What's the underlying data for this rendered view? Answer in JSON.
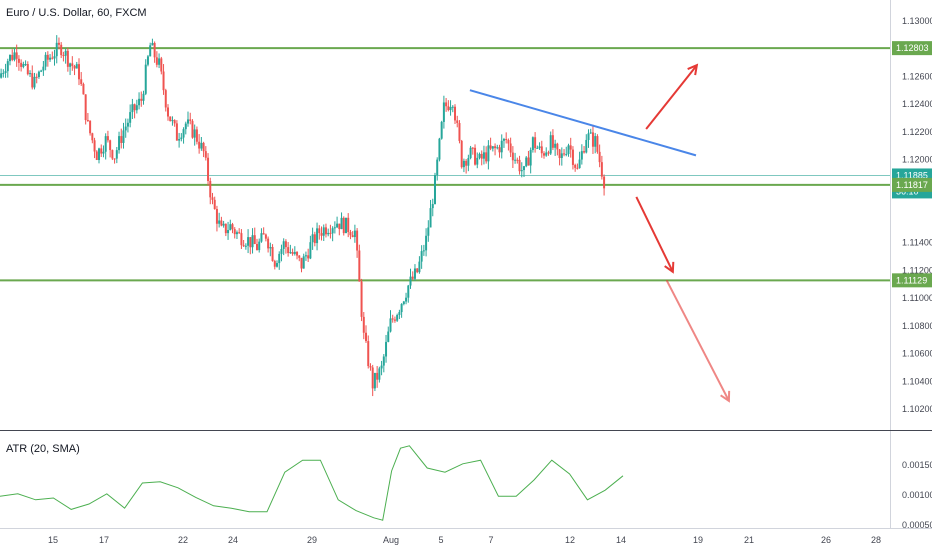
{
  "chart_data": [
    {
      "type": "candlestick",
      "title": "Euro / U.S. Dollar, 60, FXCM",
      "price_axis": {
        "ticks": [
          1.13,
          1.128,
          1.126,
          1.124,
          1.122,
          1.12,
          1.118,
          1.116,
          1.114,
          1.112,
          1.11,
          1.108,
          1.106,
          1.104,
          1.102
        ],
        "labels": [
          "1.13000",
          "1.12803",
          "1.12600",
          "1.12400",
          "1.12200",
          "1.12000",
          "1.11885",
          "36:10",
          "1.11817",
          "1.11400",
          "1.11200",
          "1.11129",
          "1.11000",
          "1.10800",
          "1.10600",
          "1.10400",
          "1.10200"
        ],
        "ylim": [
          1.1005,
          1.1315
        ]
      },
      "x_axis": {
        "labels": [
          "15",
          "17",
          "22",
          "24",
          "29",
          "Aug",
          "5",
          "7",
          "12",
          "14",
          "19",
          "21",
          "26",
          "28"
        ],
        "xlim": [
          0,
          100
        ]
      },
      "colors": {
        "up": "#26a69a",
        "down": "#ef5350",
        "level": "#6aa84f",
        "trend": "#4a86e8",
        "arrow": "#e53935"
      },
      "price_path": [
        [
          0,
          1.1259
        ],
        [
          1,
          1.1272
        ],
        [
          2,
          1.1278
        ],
        [
          3,
          1.1263
        ],
        [
          4,
          1.1255
        ],
        [
          5,
          1.1268
        ],
        [
          6,
          1.1276
        ],
        [
          7,
          1.1281
        ],
        [
          8,
          1.127
        ],
        [
          9,
          1.1262
        ],
        [
          10,
          1.1224
        ],
        [
          11,
          1.1204
        ],
        [
          12,
          1.1214
        ],
        [
          13,
          1.1203
        ],
        [
          14,
          1.1221
        ],
        [
          15,
          1.1234
        ],
        [
          16,
          1.1243
        ],
        [
          17,
          1.1282
        ],
        [
          18,
          1.1268
        ],
        [
          19,
          1.1234
        ],
        [
          20,
          1.1217
        ],
        [
          21,
          1.1226
        ],
        [
          22,
          1.1219
        ],
        [
          23,
          1.1205
        ],
        [
          24,
          1.1168
        ],
        [
          25,
          1.1148
        ],
        [
          26,
          1.1152
        ],
        [
          27,
          1.1145
        ],
        [
          28,
          1.1142
        ],
        [
          29,
          1.1137
        ],
        [
          30,
          1.1146
        ],
        [
          31,
          1.1127
        ],
        [
          32,
          1.1139
        ],
        [
          33,
          1.1132
        ],
        [
          34,
          1.1124
        ],
        [
          35,
          1.1138
        ],
        [
          36,
          1.1148
        ],
        [
          37,
          1.1152
        ],
        [
          38,
          1.1155
        ],
        [
          39,
          1.1152
        ],
        [
          40,
          1.1148
        ],
        [
          41,
          1.1072
        ],
        [
          42,
          1.1038
        ],
        [
          43,
          1.1049
        ],
        [
          44,
          1.1082
        ],
        [
          45,
          1.1094
        ],
        [
          46,
          1.1109
        ],
        [
          47,
          1.1119
        ],
        [
          48,
          1.1142
        ],
        [
          49,
          1.1183
        ],
        [
          50,
          1.1237
        ],
        [
          51,
          1.1244
        ],
        [
          52,
          1.1199
        ],
        [
          53,
          1.1204
        ],
        [
          54,
          1.1199
        ],
        [
          55,
          1.1205
        ],
        [
          56,
          1.1208
        ],
        [
          57,
          1.1214
        ],
        [
          58,
          1.1201
        ],
        [
          59,
          1.119
        ],
        [
          60,
          1.1213
        ],
        [
          61,
          1.1204
        ],
        [
          62,
          1.1212
        ],
        [
          63,
          1.1199
        ],
        [
          64,
          1.1212
        ],
        [
          65,
          1.1192
        ],
        [
          66,
          1.1217
        ],
        [
          67,
          1.1213
        ],
        [
          68,
          1.1185
        ]
      ],
      "annotations": {
        "levels": [
          1.12803,
          1.11885,
          1.11817,
          1.11129
        ],
        "trendline": [
          [
            52.8,
            1.125
          ],
          [
            78.2,
            1.1203
          ]
        ],
        "arrows": [
          {
            "from": [
              72.6,
              1.1222
            ],
            "to": [
              78.3,
              1.1268
            ],
            "opacity": 1
          },
          {
            "from": [
              71.5,
              1.1173
            ],
            "to": [
              75.6,
              1.1119
            ],
            "opacity": 1
          },
          {
            "from": [
              74.9,
              1.1113
            ],
            "to": [
              81.9,
              1.1026
            ],
            "opacity": 0.6
          }
        ]
      }
    },
    {
      "type": "line",
      "title": "ATR (20, SMA)",
      "ticks": [
        0.0015,
        0.001,
        0.0005
      ],
      "labels": [
        "0.00150",
        "0.00100",
        "0.00050"
      ],
      "ylim": [
        0.00045,
        0.00205
      ],
      "x": [
        0,
        2,
        4,
        6,
        8,
        10,
        12,
        14,
        16,
        18,
        20,
        22,
        24,
        26,
        28,
        30,
        32,
        34,
        36,
        38,
        40,
        42,
        43,
        44,
        45,
        46,
        48,
        50,
        52,
        54,
        56,
        58,
        60,
        62,
        64,
        66,
        68,
        70
      ],
      "values": [
        0.00098,
        0.00102,
        0.00092,
        0.00095,
        0.00076,
        0.00085,
        0.00102,
        0.00078,
        0.0012,
        0.00122,
        0.00112,
        0.00096,
        0.00082,
        0.00078,
        0.00072,
        0.00072,
        0.00138,
        0.00158,
        0.00158,
        0.00092,
        0.00074,
        0.00062,
        0.00058,
        0.0014,
        0.00178,
        0.00182,
        0.00145,
        0.00138,
        0.00152,
        0.00158,
        0.00098,
        0.00098,
        0.00125,
        0.00158,
        0.00135,
        0.00092,
        0.00108,
        0.00132
      ]
    }
  ]
}
